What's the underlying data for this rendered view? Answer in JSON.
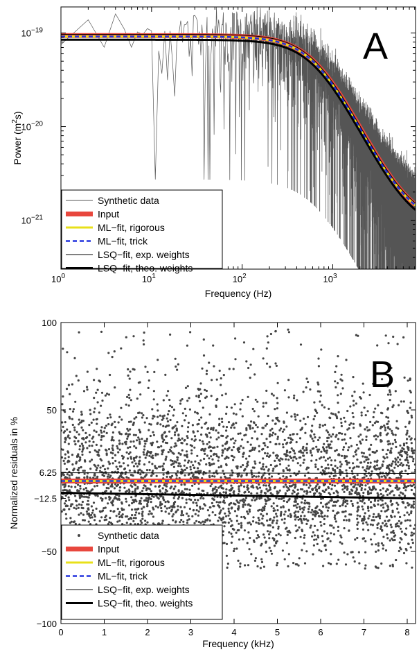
{
  "chart_data": [
    {
      "panel_label": "A",
      "type": "line",
      "xlabel": "Frequency (Hz)",
      "ylabel_main": "Power (m",
      "ylabel_sup": "2",
      "ylabel_tail": "s)",
      "xscale": "log",
      "yscale": "log",
      "xlim": [
        1,
        8192
      ],
      "ylim": [
        3e-22,
        1.9e-19
      ],
      "x_tick_labels": [
        {
          "value": 1,
          "base": "10",
          "exp": "0"
        },
        {
          "value": 10,
          "base": "10",
          "exp": "1"
        },
        {
          "value": 100,
          "base": "10",
          "exp": "2"
        },
        {
          "value": 1000,
          "base": "10",
          "exp": "3"
        }
      ],
      "y_tick_labels": [
        {
          "value": 1e-21,
          "base": "10",
          "exp": "−21"
        },
        {
          "value": 1e-20,
          "base": "10",
          "exp": "−20"
        },
        {
          "value": 1e-19,
          "base": "10",
          "exp": "−19"
        }
      ],
      "grid": false,
      "legend_position": "bottom-left",
      "model": {
        "form": "lorentzian_plus_floor",
        "corner_frequency_hz": 650
      },
      "series": [
        {
          "name": "Synthetic data",
          "color": "#555555",
          "style": "noisy",
          "plateau": 9e-20,
          "floor": 8e-22
        },
        {
          "name": "Input",
          "color": "#e8473d",
          "style": "thick",
          "plateau": 9.3e-20,
          "floor": 8.8e-22
        },
        {
          "name": "ML−fit, rigorous",
          "color": "#e8e01a",
          "style": "medium",
          "plateau": 9.1e-20,
          "floor": 8.7e-22
        },
        {
          "name": "ML−fit, trick",
          "color": "#2233dd",
          "style": "dashed",
          "plateau": 9.1e-20,
          "floor": 8.7e-22
        },
        {
          "name": "LSQ−fit, exp. weights",
          "color": "#000000",
          "style": "thin",
          "plateau": 9.6e-20,
          "floor": 9.2e-22
        },
        {
          "name": "LSQ−fit, theo. weights",
          "color": "#000000",
          "style": "thick-black",
          "plateau": 8.4e-20,
          "floor": 7.6e-22
        }
      ]
    },
    {
      "panel_label": "B",
      "type": "scatter",
      "xlabel": "Frequency (kHz)",
      "ylabel": "Normalized residuals in %",
      "xlim": [
        0,
        8.192
      ],
      "ylim": [
        -100,
        100
      ],
      "x_ticks": [
        0,
        1,
        2,
        3,
        4,
        5,
        6,
        7,
        8
      ],
      "x_tick_labels": [
        "0",
        "1",
        "2",
        "3",
        "4",
        "5",
        "6",
        "7",
        "8"
      ],
      "y_ticks": [
        -100,
        -50,
        -12.5,
        6.25,
        50,
        100
      ],
      "y_tick_labels": [
        "−100",
        "−50",
        "−12.5",
        "6.25",
        "50",
        "100"
      ],
      "grid": false,
      "legend_position": "bottom-left",
      "scatter": {
        "name": "Synthetic data",
        "color": "#444444",
        "center": 0,
        "spread_sd": 28,
        "min": -62,
        "max": 96
      },
      "lines": [
        {
          "name": "Input",
          "color": "#e8473d",
          "style": "thick",
          "y": 0
        },
        {
          "name": "ML−fit, rigorous",
          "color": "#e8e01a",
          "style": "medium",
          "y": 0
        },
        {
          "name": "ML−fit, trick",
          "color": "#2233dd",
          "style": "dashed",
          "y": 0
        },
        {
          "name": "LSQ−fit, exp. weights",
          "color": "#000000",
          "style": "thin",
          "y_start": 6,
          "y_end": 5.5
        },
        {
          "name": "LSQ−fit, theo. weights",
          "color": "#000000",
          "style": "thick-black",
          "y_start": -8.5,
          "y_end": -12.5
        }
      ]
    }
  ]
}
